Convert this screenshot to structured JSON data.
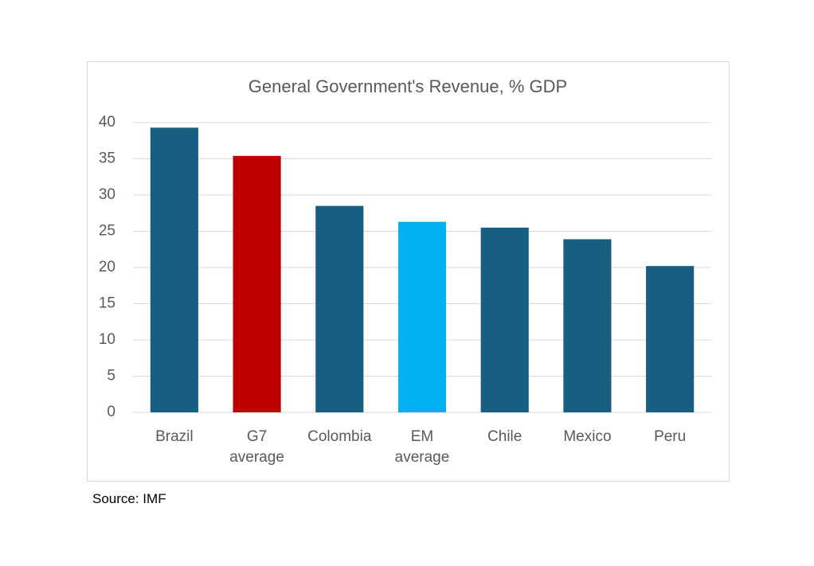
{
  "chart_data": {
    "type": "bar",
    "title": "General Government's Revenue, % GDP",
    "categories": [
      "Brazil",
      "G7\naverage",
      "Colombia",
      "EM\naverage",
      "Chile",
      "Mexico",
      "Peru"
    ],
    "values": [
      39.3,
      35.4,
      28.5,
      26.3,
      25.5,
      23.9,
      20.2
    ],
    "colors": [
      "#175e80",
      "#c00000",
      "#175e80",
      "#00b0f0",
      "#175e80",
      "#175e80",
      "#175e80"
    ],
    "ylim": [
      0,
      40
    ],
    "yticks": [
      0,
      5,
      10,
      15,
      20,
      25,
      30,
      35,
      40
    ],
    "grid": true,
    "source": "Source: IMF"
  }
}
